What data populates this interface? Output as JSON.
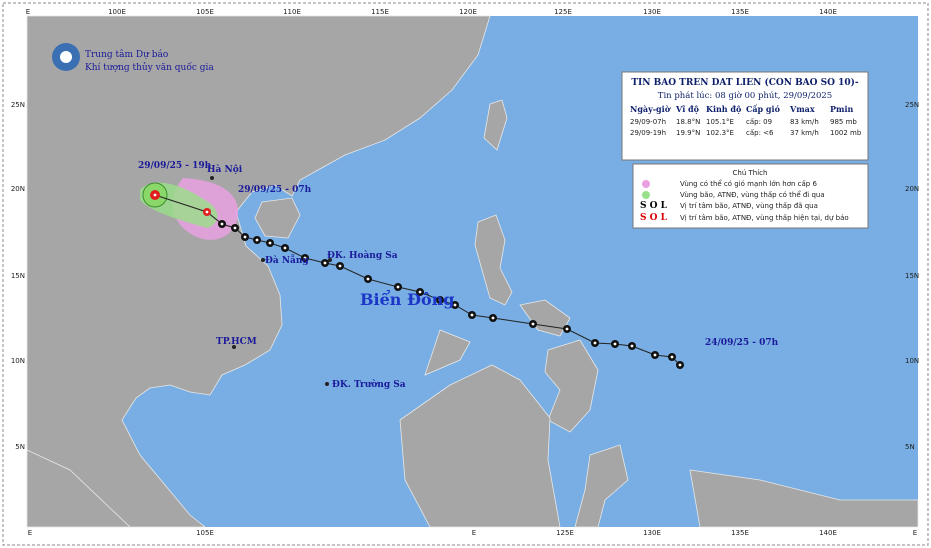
{
  "header": {
    "org1": "Trung tâm Dự báo",
    "org2": "Khí tượng thủy văn quốc gia"
  },
  "top_labels": [
    "E",
    "100E",
    "105E",
    "110E",
    "115E",
    "120E",
    "125E",
    "130E",
    "135E",
    "140E"
  ],
  "bottom_labels": [
    "E",
    "105E",
    "E",
    "125E",
    "130E",
    "135E",
    "140E",
    "E"
  ],
  "left_labels": [
    "25N",
    "20N",
    "15N",
    "10N",
    "5N"
  ],
  "right_labels": [
    "25N",
    "20N",
    "15N",
    "10N",
    "5N"
  ],
  "info": {
    "title": "TIN BAO TREN DAT LIEN (CON BAO SO 10)-",
    "issued": "Tin phát lúc: 08 giờ 00 phút, 29/09/2025",
    "columns": [
      "Ngày-giờ",
      "Vĩ độ",
      "Kinh độ",
      "Cấp gió",
      "Vmax",
      "Pmin"
    ],
    "rows": [
      [
        "29/09-07h",
        "18.8°N",
        "105.1°E",
        "cấp: 09",
        "83 km/h",
        "985 mb"
      ],
      [
        "29/09-19h",
        "19.9°N",
        "102.3°E",
        "cấp: <6",
        "37 km/h",
        "1002 mb"
      ]
    ]
  },
  "legend": {
    "title": "Chú Thích",
    "items": [
      "Vùng có thể có gió mạnh lớn hơn cấp 6",
      "Vùng bão, ATNĐ, vùng thấp có thể đi qua",
      "Vị trí tâm bão, ATNĐ, vùng thấp đã qua",
      "Vị trí tâm bão, ATNĐ, vùng thấp hiện tại, dự báo"
    ]
  },
  "places": {
    "hanoi": "Hà Nội",
    "t19": "29/09/25 - 19h",
    "t07": "29/09/25 - 07h",
    "danang": "Đà Nẵng",
    "hoangsa": "ĐK. Hoàng Sa",
    "biendong": "Biển Đông",
    "hcm": "TP.HCM",
    "truongsa": "ĐK. Trường Sa",
    "start": "24/09/25 - 07h"
  }
}
